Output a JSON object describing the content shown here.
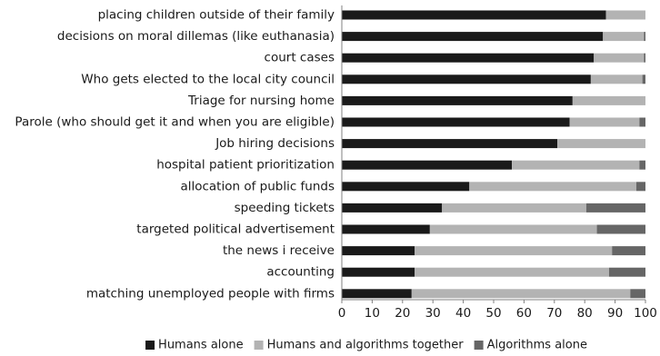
{
  "chart_data": {
    "type": "bar",
    "orientation": "horizontal",
    "stacked": true,
    "title": "",
    "xlabel": "",
    "ylabel": "",
    "xlim": [
      0,
      100
    ],
    "xticks": [
      0,
      10,
      20,
      30,
      40,
      50,
      60,
      70,
      80,
      90,
      100
    ],
    "grid": false,
    "legend_position": "bottom",
    "categories": [
      "placing children outside of their family",
      "decisions on moral dillemas (like euthanasia)",
      "court cases",
      "Who gets elected to the local city council",
      "Triage for nursing home",
      "Parole (who should get it and when you are eligible)",
      "Job hiring decisions",
      "hospital patient prioritization",
      "allocation of public funds",
      "speeding tickets",
      "targeted political advertisement",
      "the news i receive",
      "accounting",
      "matching unemployed people with firms"
    ],
    "series": [
      {
        "name": "Humans alone",
        "color": "#1a1a1a",
        "values": [
          87,
          86,
          83,
          82,
          76,
          75,
          71,
          56,
          42,
          33,
          29,
          24,
          24,
          23
        ]
      },
      {
        "name": "Humans and algorithms together",
        "color": "#b3b3b3",
        "values": [
          13,
          13.5,
          16.5,
          17,
          24,
          23,
          29,
          42,
          55,
          47.5,
          55,
          65,
          64,
          72
        ]
      },
      {
        "name": "Algorithms alone",
        "color": "#666666",
        "values": [
          0,
          0.5,
          0.5,
          1,
          0,
          2,
          0,
          2,
          3,
          19.5,
          16,
          11,
          12,
          5
        ]
      }
    ]
  }
}
